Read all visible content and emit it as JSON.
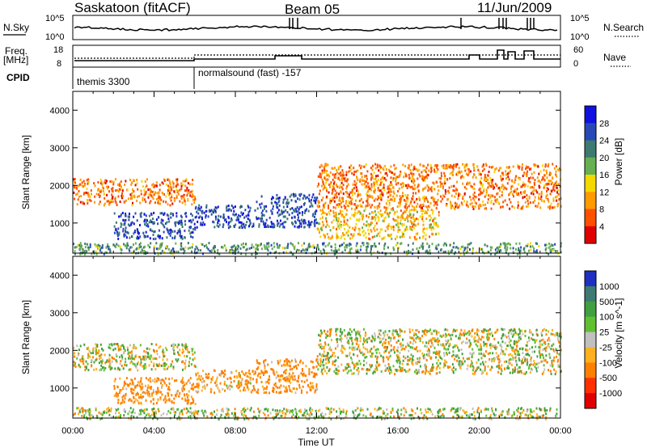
{
  "header": {
    "station": "Saskatoon (fitACF)",
    "beam": "Beam 05",
    "date": "11/Jun/2009"
  },
  "panels": {
    "nsky": {
      "left_label": "N.Sky",
      "right_label": "N.Search",
      "tick_top": "10^5",
      "tick_bottom": "10^0"
    },
    "freq": {
      "left_label_1": "Freq.",
      "left_label_2": "[MHz]",
      "right_label": "Nave",
      "tick_top": "18",
      "tick_bottom": "8",
      "right_tick_top": "60",
      "right_tick_bottom": "0"
    },
    "cpid": {
      "label": "CPID",
      "segments": [
        {
          "text": "themis 3300",
          "start_hour": 0
        },
        {
          "text": "normalsound (fast) -157",
          "start_hour": 6
        }
      ]
    }
  },
  "chart_data": [
    {
      "type": "heatmap",
      "title": "",
      "xlabel": "",
      "ylabel": "Slant Range [km]",
      "colorbar_label": "Power [dB]",
      "colorbar_ticks": [
        "4",
        "8",
        "12",
        "16",
        "20",
        "24",
        "28"
      ],
      "colorbar_colors": [
        "#1010e0",
        "#2848b8",
        "#3c7a72",
        "#66b050",
        "#f4d800",
        "#ff9a00",
        "#ff5000",
        "#e00000"
      ],
      "xlim": [
        0,
        24
      ],
      "ylim": [
        200,
        4500
      ],
      "yticks": [
        "1000",
        "2000",
        "3000",
        "4000"
      ],
      "x_ticks_hours": [
        0,
        4,
        8,
        12,
        16,
        20,
        24
      ],
      "echo_regions": [
        {
          "hours": [
            0,
            6
          ],
          "range_km": [
            1500,
            2200
          ],
          "typical_db": 8
        },
        {
          "hours": [
            2,
            6
          ],
          "range_km": [
            600,
            1300
          ],
          "typical_db": 26
        },
        {
          "hours": [
            6,
            9
          ],
          "range_km": [
            900,
            1500
          ],
          "typical_db": 26
        },
        {
          "hours": [
            9,
            12
          ],
          "range_km": [
            900,
            1800
          ],
          "typical_db": 26
        },
        {
          "hours": [
            12,
            18
          ],
          "range_km": [
            600,
            1400
          ],
          "typical_db": 12
        },
        {
          "hours": [
            12,
            24
          ],
          "range_km": [
            1400,
            2600
          ],
          "typical_db": 8
        },
        {
          "hours": [
            0,
            24
          ],
          "range_km": [
            200,
            500
          ],
          "typical_db": 20
        }
      ]
    },
    {
      "type": "heatmap",
      "title": "",
      "xlabel": "Time UT",
      "ylabel": "Slant Range [km]",
      "colorbar_label": "Velocity [m s^-1]",
      "colorbar_ticks": [
        "1000",
        "500",
        "100",
        "25",
        "-25",
        "-100",
        "-500",
        "-1000"
      ],
      "colorbar_colors": [
        "#2030c0",
        "#3c7a72",
        "#40a040",
        "#60c030",
        "#c0c0c0",
        "#ffb020",
        "#ff8000",
        "#ff3000",
        "#e00000"
      ],
      "xlim": [
        0,
        24
      ],
      "ylim": [
        200,
        4500
      ],
      "yticks": [
        "1000",
        "2000",
        "3000",
        "4000"
      ],
      "x_tick_labels": [
        "00:00",
        "04:00",
        "08:00",
        "12:00",
        "16:00",
        "20:00",
        "00:00"
      ],
      "x_ticks_hours": [
        0,
        4,
        8,
        12,
        16,
        20,
        24
      ],
      "echo_regions": [
        {
          "hours": [
            0,
            6
          ],
          "range_km": [
            1500,
            2200
          ],
          "typical_ms": 0
        },
        {
          "hours": [
            2,
            6
          ],
          "range_km": [
            600,
            1300
          ],
          "typical_ms": -200
        },
        {
          "hours": [
            6,
            9
          ],
          "range_km": [
            900,
            1500
          ],
          "typical_ms": -150
        },
        {
          "hours": [
            9,
            12
          ],
          "range_km": [
            900,
            1800
          ],
          "typical_ms": -200
        },
        {
          "hours": [
            12,
            24
          ],
          "range_km": [
            1400,
            2600
          ],
          "typical_ms": 0
        },
        {
          "hours": [
            0,
            24
          ],
          "range_km": [
            200,
            500
          ],
          "typical_ms": 50
        }
      ]
    }
  ]
}
